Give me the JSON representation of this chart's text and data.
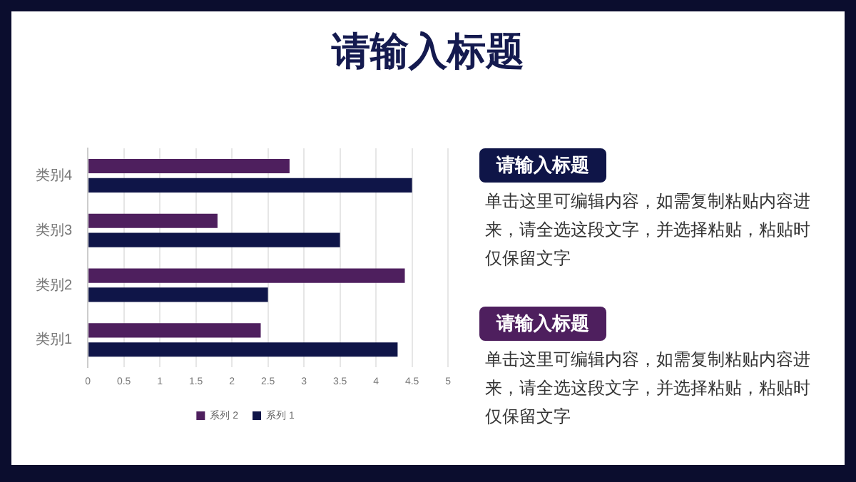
{
  "chart_data": {
    "type": "bar",
    "orientation": "horizontal",
    "title": "请输入标题",
    "categories": [
      "类别4",
      "类别3",
      "类别2",
      "类别1"
    ],
    "series": [
      {
        "name": "系列 2",
        "color": "#4e1f5e",
        "values": [
          2.8,
          1.8,
          4.4,
          2.4
        ]
      },
      {
        "name": "系列 1",
        "color": "#0f1548",
        "values": [
          4.5,
          3.5,
          2.5,
          4.3
        ]
      }
    ],
    "xlim": [
      0,
      5
    ],
    "xticks": [
      0,
      0.5,
      1,
      1.5,
      2,
      2.5,
      3,
      3.5,
      4,
      4.5,
      5
    ],
    "grid": "x",
    "legend": "bottom",
    "annotations": [
      "请输入标题",
      "单击这里可编辑内容，如需复制粘贴内容进来，请全选这段文字，并选择粘贴，粘贴时仅保留文字",
      "请输入标题",
      "单击这里可编辑内容，如需复制粘贴内容进来，请全选这段文字，并选择粘贴，粘贴时仅保留文字"
    ]
  }
}
